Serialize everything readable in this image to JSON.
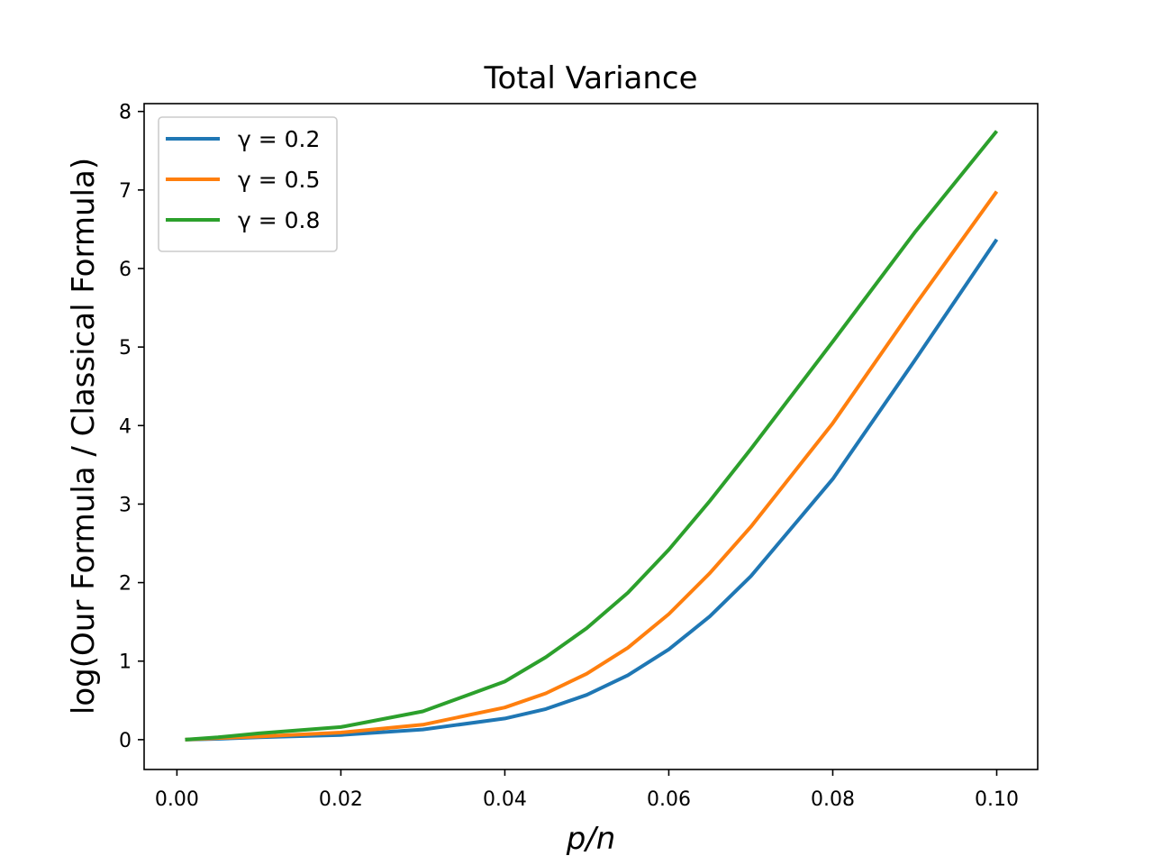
{
  "chart_data": {
    "type": "line",
    "title": "Total Variance",
    "xlabel": "p/n",
    "ylabel": "log(Our Formula / Classical Formula)",
    "xlim": [
      -0.004,
      0.105
    ],
    "ylim": [
      -0.38,
      8.1
    ],
    "xticks": [
      0.0,
      0.02,
      0.04,
      0.06,
      0.08,
      0.1
    ],
    "xtick_labels": [
      "0.00",
      "0.02",
      "0.04",
      "0.06",
      "0.08",
      "0.10"
    ],
    "yticks": [
      0,
      1,
      2,
      3,
      4,
      5,
      6,
      7,
      8
    ],
    "ytick_labels": [
      "0",
      "1",
      "2",
      "3",
      "4",
      "5",
      "6",
      "7",
      "8"
    ],
    "legend_position": "top-left",
    "grid": false,
    "x": [
      0.001,
      0.005,
      0.01,
      0.02,
      0.03,
      0.04,
      0.045,
      0.05,
      0.055,
      0.06,
      0.065,
      0.07,
      0.08,
      0.09,
      0.1
    ],
    "series": [
      {
        "name": "γ = 0.2",
        "color": "#1f77b4",
        "values": [
          0.0,
          0.01,
          0.03,
          0.06,
          0.13,
          0.27,
          0.39,
          0.57,
          0.82,
          1.15,
          1.57,
          2.08,
          3.32,
          4.83,
          6.37
        ]
      },
      {
        "name": "γ = 0.5",
        "color": "#ff7f0e",
        "values": [
          0.0,
          0.02,
          0.04,
          0.09,
          0.19,
          0.41,
          0.59,
          0.84,
          1.17,
          1.6,
          2.12,
          2.71,
          4.03,
          5.53,
          6.98
        ]
      },
      {
        "name": "γ = 0.8",
        "color": "#2ca02c",
        "values": [
          0.0,
          0.03,
          0.08,
          0.16,
          0.36,
          0.74,
          1.05,
          1.42,
          1.87,
          2.42,
          3.04,
          3.7,
          5.07,
          6.46,
          7.75
        ]
      }
    ]
  }
}
